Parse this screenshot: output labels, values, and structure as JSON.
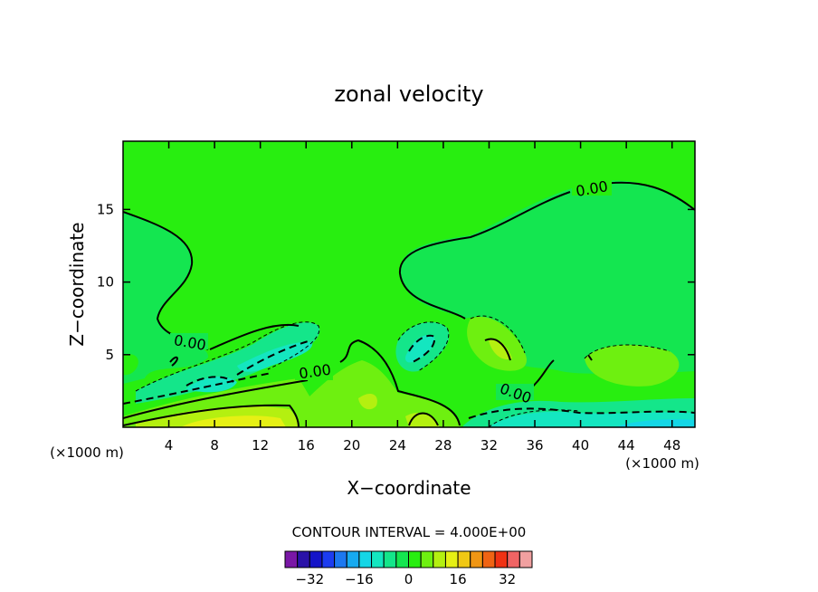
{
  "chart_data": {
    "type": "contour",
    "title": "zonal velocity",
    "xlabel": "X−coordinate",
    "ylabel": "Z−coordinate",
    "x_unit_left": "(×1000 m)",
    "x_unit_right": "(×1000 m)",
    "xlim": [
      0,
      50
    ],
    "ylim": [
      0,
      19.7
    ],
    "x_ticks": [
      4,
      8,
      12,
      16,
      20,
      24,
      28,
      32,
      36,
      40,
      44,
      48
    ],
    "y_ticks": [
      5,
      10,
      15
    ],
    "contour_interval_text": "CONTOUR INTERVAL = 4.000E+00",
    "contour_labels": [
      "0.00",
      "0.00",
      "0.00",
      "0.00"
    ],
    "colorbar": {
      "tick_labels": [
        "−32",
        "−16",
        "0",
        "16",
        "32"
      ],
      "tick_values": [
        -32,
        -16,
        0,
        16,
        32
      ],
      "levels": [
        -36,
        -32,
        -28,
        -24,
        -20,
        -16,
        -12,
        -8,
        -4,
        0,
        4,
        8,
        12,
        16,
        20,
        24,
        28,
        32,
        36
      ],
      "colors": [
        "#7a17a6",
        "#2a12a8",
        "#1414c8",
        "#1c3cf0",
        "#1c78f0",
        "#16aaf0",
        "#14d6e6",
        "#14e6c0",
        "#14e68a",
        "#14e650",
        "#28ee10",
        "#6ef010",
        "#b4f010",
        "#e6f014",
        "#f0c814",
        "#f09614",
        "#f06414",
        "#f03214",
        "#f06464",
        "#f0a0a0"
      ]
    }
  }
}
